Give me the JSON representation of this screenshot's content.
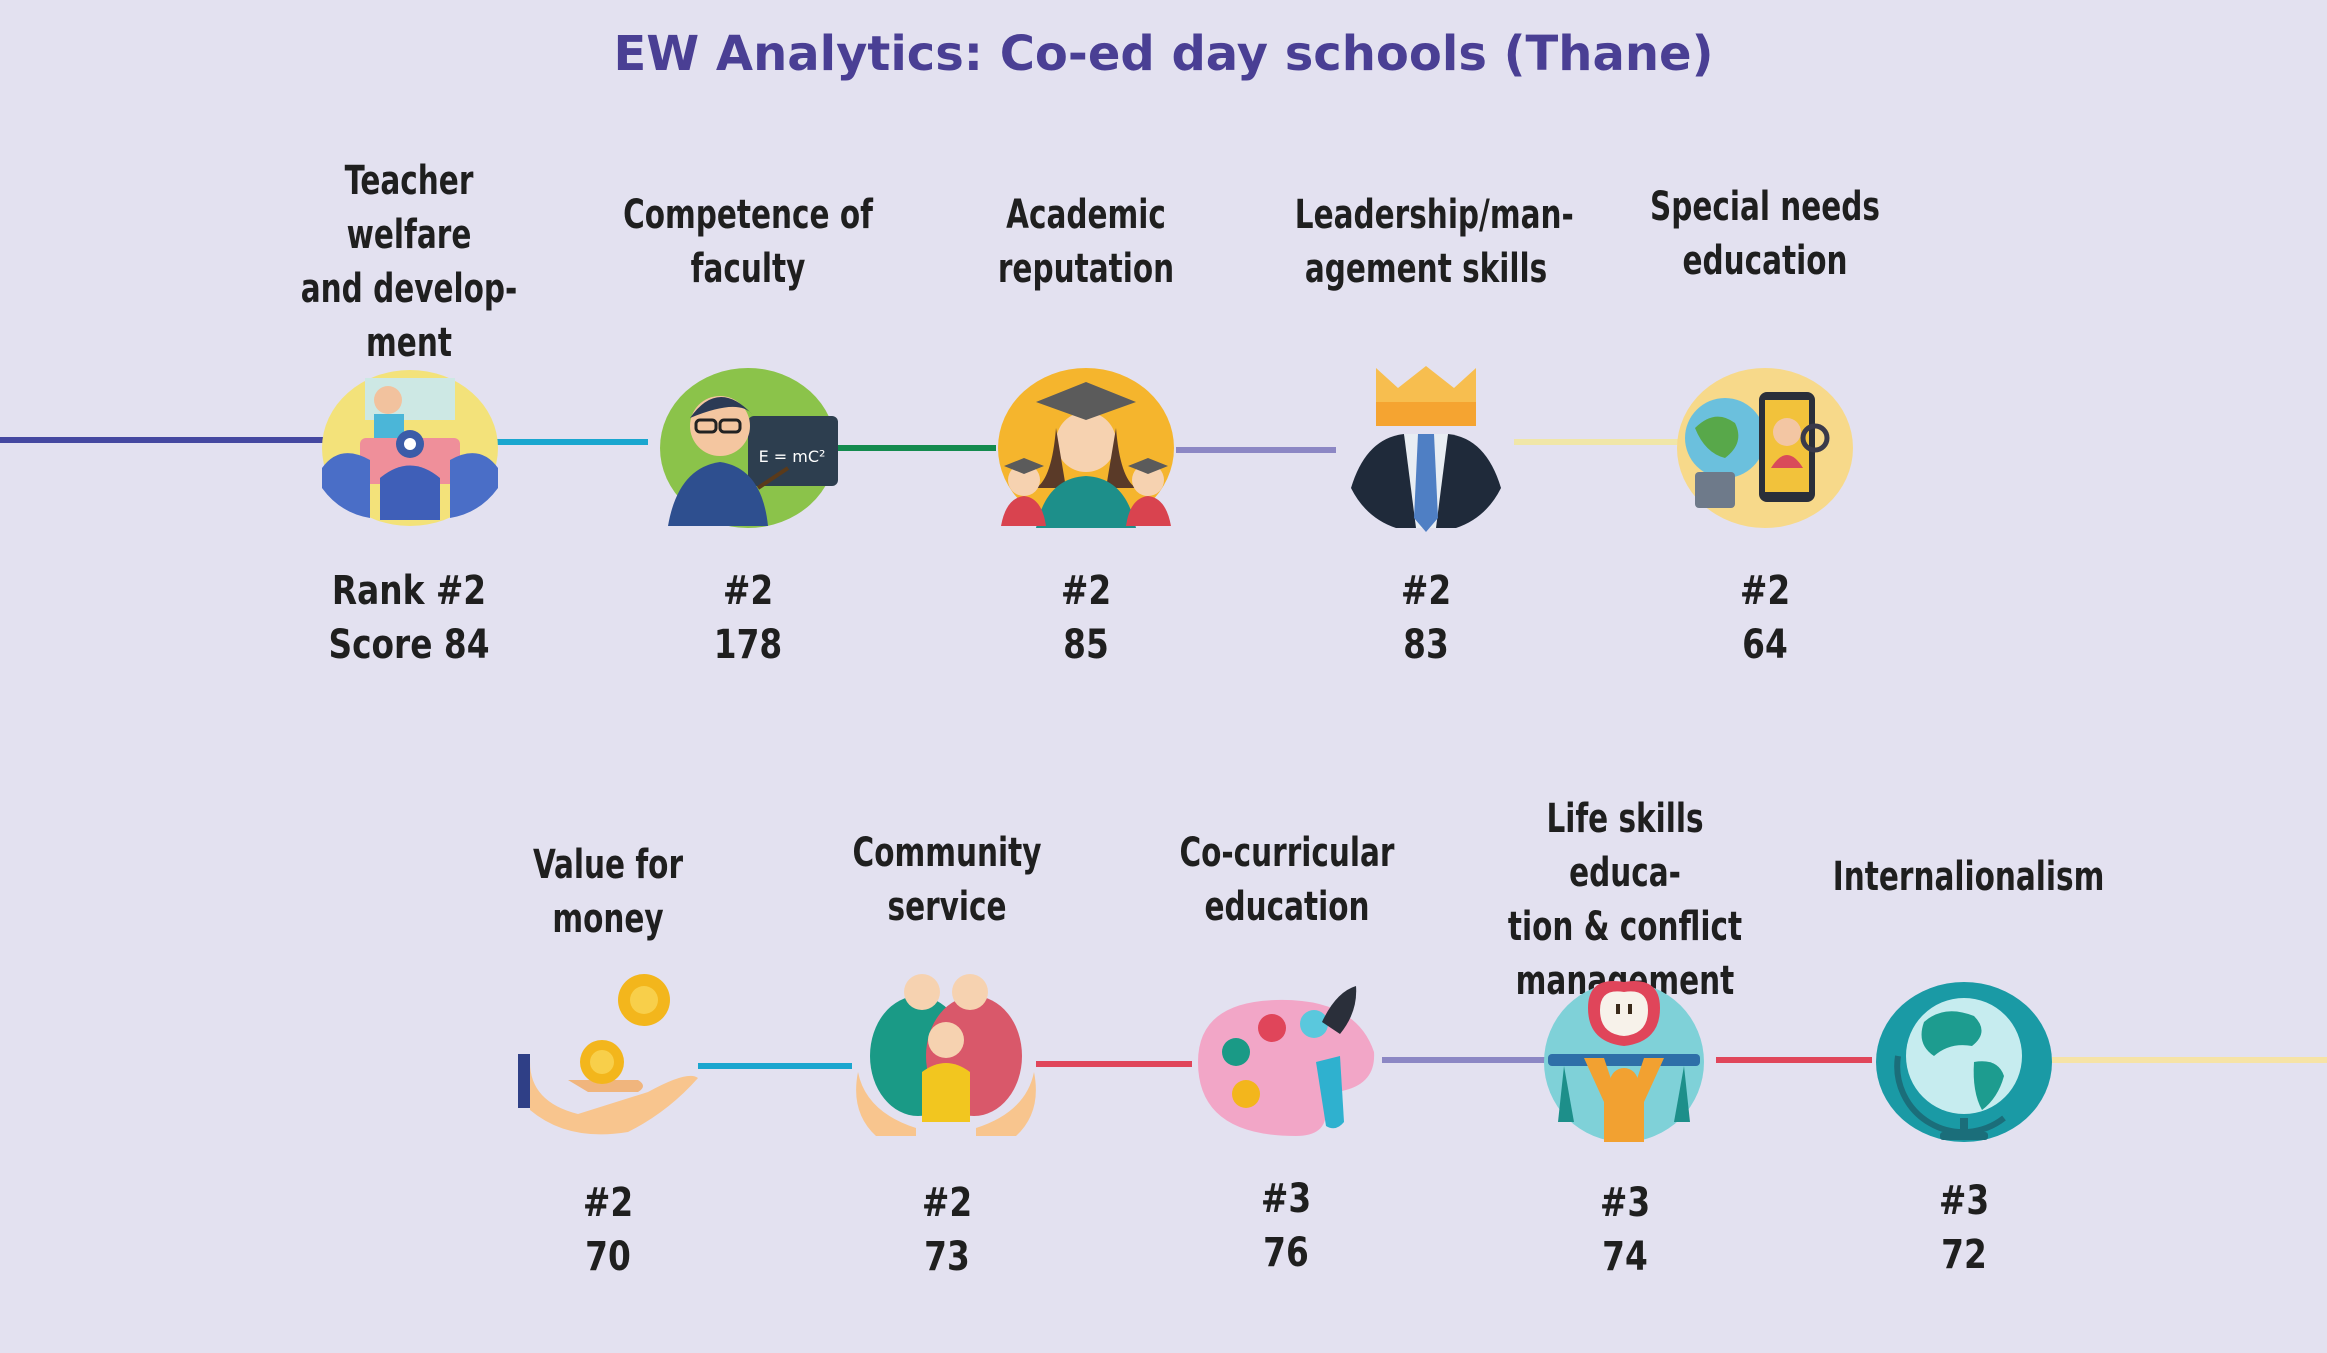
{
  "title": "EW Analytics: Co-ed day schools (Thane)",
  "colors": {
    "background": "#e3e1f0",
    "title": "#4a3f94",
    "text": "#1f1f1f"
  },
  "row1": [
    {
      "label_lines": [
        "Teacher welfare",
        "and develop-",
        "ment"
      ],
      "rank": "Rank #2",
      "score": "Score 84",
      "icon": "teacher-classroom-icon",
      "line_color": "#4447a0"
    },
    {
      "label_lines": [
        "Competence of",
        "faculty"
      ],
      "rank": "#2",
      "score": "178",
      "icon": "teacher-blackboard-icon",
      "line_color": "#1aa6cf"
    },
    {
      "label_lines": [
        "Academic",
        "reputation"
      ],
      "rank": "#2",
      "score": "85",
      "icon": "graduates-icon",
      "line_color": "#138a4e"
    },
    {
      "label_lines": [
        "Leadership/man-",
        "agement skills"
      ],
      "rank": "#2",
      "score": "83",
      "icon": "crown-suit-icon",
      "line_color": "#8c87c4"
    },
    {
      "label_lines": [
        "Special needs",
        "education"
      ],
      "rank": "#2",
      "score": "64",
      "icon": "globe-family-icon",
      "line_color": "#f0e6a8"
    }
  ],
  "row2": [
    {
      "label_lines": [
        "Value for money"
      ],
      "rank": "#2",
      "score": "70",
      "icon": "coins-hand-icon",
      "line_color": "#1aa6cf"
    },
    {
      "label_lines": [
        "Community",
        "service"
      ],
      "rank": "#2",
      "score": "73",
      "icon": "community-hands-icon",
      "line_color": "#e0455a"
    },
    {
      "label_lines": [
        "Co-curricular",
        "education"
      ],
      "rank": "#3",
      "score": "76",
      "icon": "paint-palette-icon",
      "line_color": "#8c87c4"
    },
    {
      "label_lines": [
        "Life skills educa-",
        "tion & conflict",
        "management"
      ],
      "rank": "#3",
      "score": "74",
      "icon": "apple-person-icon",
      "line_color": "#e0455a"
    },
    {
      "label_lines": [
        "Internalionalism"
      ],
      "rank": "#3",
      "score": "72",
      "icon": "globe-icon",
      "line_color": "#f6e3a6"
    }
  ]
}
